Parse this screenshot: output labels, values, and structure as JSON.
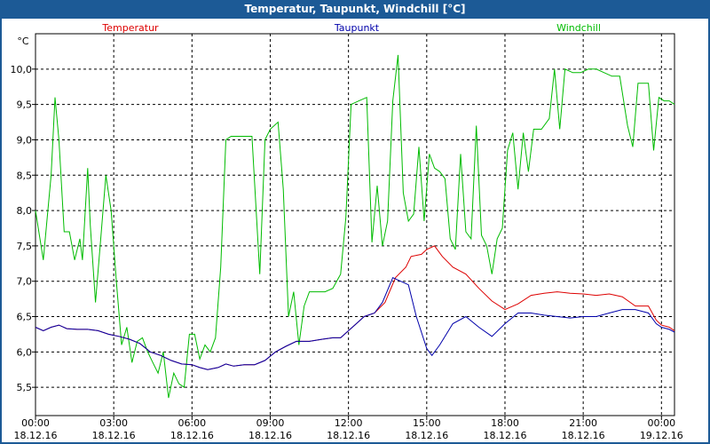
{
  "window": {
    "title": "Temperatur, Taupunkt, Windchill [°C]"
  },
  "chart_data": {
    "type": "line",
    "y_unit": "°C",
    "ylim": [
      5.1,
      10.5
    ],
    "yticks": [
      "5,5",
      "6,0",
      "6,5",
      "7,0",
      "7,5",
      "8,0",
      "8,5",
      "9,0",
      "9,5",
      "10,0"
    ],
    "ytick_values": [
      5.5,
      6.0,
      6.5,
      7.0,
      7.5,
      8.0,
      8.5,
      9.0,
      9.5,
      10.0
    ],
    "xlim": [
      0,
      24.5
    ],
    "xticks": [
      {
        "time": "00:00",
        "date": "18.12.16",
        "hour": 0
      },
      {
        "time": "03:00",
        "date": "18.12.16",
        "hour": 3
      },
      {
        "time": "06:00",
        "date": "18.12.16",
        "hour": 6
      },
      {
        "time": "09:00",
        "date": "18.12.16",
        "hour": 9
      },
      {
        "time": "12:00",
        "date": "18.12.16",
        "hour": 12
      },
      {
        "time": "15:00",
        "date": "18.12.16",
        "hour": 15
      },
      {
        "time": "18:00",
        "date": "18.12.16",
        "hour": 18
      },
      {
        "time": "21:00",
        "date": "18.12.16",
        "hour": 21
      },
      {
        "time": "00:00",
        "date": "19.12.16",
        "hour": 24
      }
    ],
    "grid": true,
    "series": [
      {
        "name": "Temperatur",
        "color": "#dd0000",
        "points": [
          [
            0,
            6.35
          ],
          [
            0.3,
            6.3
          ],
          [
            0.6,
            6.35
          ],
          [
            0.9,
            6.38
          ],
          [
            1.2,
            6.33
          ],
          [
            1.6,
            6.32
          ],
          [
            2.0,
            6.32
          ],
          [
            2.4,
            6.3
          ],
          [
            2.8,
            6.25
          ],
          [
            3.2,
            6.22
          ],
          [
            3.6,
            6.18
          ],
          [
            4.0,
            6.12
          ],
          [
            4.4,
            6.0
          ],
          [
            4.8,
            5.95
          ],
          [
            5.2,
            5.88
          ],
          [
            5.6,
            5.83
          ],
          [
            6.0,
            5.82
          ],
          [
            6.3,
            5.78
          ],
          [
            6.6,
            5.75
          ],
          [
            7.0,
            5.78
          ],
          [
            7.3,
            5.83
          ],
          [
            7.6,
            5.8
          ],
          [
            8.0,
            5.82
          ],
          [
            8.4,
            5.82
          ],
          [
            8.8,
            5.88
          ],
          [
            9.2,
            6.0
          ],
          [
            9.6,
            6.08
          ],
          [
            10.0,
            6.15
          ],
          [
            10.5,
            6.15
          ],
          [
            11.0,
            6.18
          ],
          [
            11.4,
            6.2
          ],
          [
            11.7,
            6.2
          ],
          [
            12.0,
            6.3
          ],
          [
            12.3,
            6.4
          ],
          [
            12.6,
            6.5
          ],
          [
            13.0,
            6.55
          ],
          [
            13.4,
            6.7
          ],
          [
            13.8,
            7.05
          ],
          [
            14.2,
            7.2
          ],
          [
            14.4,
            7.35
          ],
          [
            14.8,
            7.38
          ],
          [
            15.0,
            7.45
          ],
          [
            15.3,
            7.5
          ],
          [
            15.6,
            7.35
          ],
          [
            16.0,
            7.2
          ],
          [
            16.5,
            7.1
          ],
          [
            17.0,
            6.9
          ],
          [
            17.5,
            6.72
          ],
          [
            18.0,
            6.6
          ],
          [
            18.5,
            6.68
          ],
          [
            19.0,
            6.8
          ],
          [
            19.5,
            6.83
          ],
          [
            20.0,
            6.85
          ],
          [
            20.5,
            6.83
          ],
          [
            21.0,
            6.82
          ],
          [
            21.5,
            6.8
          ],
          [
            22.0,
            6.82
          ],
          [
            22.5,
            6.78
          ],
          [
            23.0,
            6.65
          ],
          [
            23.5,
            6.65
          ],
          [
            23.8,
            6.45
          ],
          [
            24.0,
            6.38
          ],
          [
            24.3,
            6.35
          ],
          [
            24.5,
            6.3
          ]
        ]
      },
      {
        "name": "Taupunkt",
        "color": "#0000aa",
        "points": [
          [
            0,
            6.35
          ],
          [
            0.3,
            6.3
          ],
          [
            0.6,
            6.35
          ],
          [
            0.9,
            6.38
          ],
          [
            1.2,
            6.33
          ],
          [
            1.6,
            6.32
          ],
          [
            2.0,
            6.32
          ],
          [
            2.4,
            6.3
          ],
          [
            2.8,
            6.25
          ],
          [
            3.2,
            6.22
          ],
          [
            3.6,
            6.18
          ],
          [
            4.0,
            6.12
          ],
          [
            4.4,
            6.0
          ],
          [
            4.8,
            5.95
          ],
          [
            5.2,
            5.88
          ],
          [
            5.6,
            5.83
          ],
          [
            6.0,
            5.82
          ],
          [
            6.3,
            5.78
          ],
          [
            6.6,
            5.75
          ],
          [
            7.0,
            5.78
          ],
          [
            7.3,
            5.83
          ],
          [
            7.6,
            5.8
          ],
          [
            8.0,
            5.82
          ],
          [
            8.4,
            5.82
          ],
          [
            8.8,
            5.88
          ],
          [
            9.2,
            6.0
          ],
          [
            9.6,
            6.08
          ],
          [
            10.0,
            6.15
          ],
          [
            10.5,
            6.15
          ],
          [
            11.0,
            6.18
          ],
          [
            11.4,
            6.2
          ],
          [
            11.7,
            6.2
          ],
          [
            12.0,
            6.3
          ],
          [
            12.3,
            6.4
          ],
          [
            12.6,
            6.5
          ],
          [
            13.0,
            6.55
          ],
          [
            13.3,
            6.7
          ],
          [
            13.7,
            7.05
          ],
          [
            14.0,
            7.0
          ],
          [
            14.3,
            6.95
          ],
          [
            14.6,
            6.5
          ],
          [
            15.0,
            6.05
          ],
          [
            15.2,
            5.95
          ],
          [
            15.5,
            6.1
          ],
          [
            16.0,
            6.4
          ],
          [
            16.5,
            6.5
          ],
          [
            17.0,
            6.35
          ],
          [
            17.5,
            6.22
          ],
          [
            18.0,
            6.4
          ],
          [
            18.5,
            6.55
          ],
          [
            19.0,
            6.55
          ],
          [
            19.5,
            6.52
          ],
          [
            20.0,
            6.5
          ],
          [
            20.5,
            6.48
          ],
          [
            21.0,
            6.5
          ],
          [
            21.5,
            6.5
          ],
          [
            22.0,
            6.55
          ],
          [
            22.5,
            6.6
          ],
          [
            23.0,
            6.6
          ],
          [
            23.5,
            6.55
          ],
          [
            23.8,
            6.4
          ],
          [
            24.0,
            6.35
          ],
          [
            24.3,
            6.32
          ],
          [
            24.5,
            6.28
          ]
        ]
      },
      {
        "name": "Windchill",
        "color": "#00bb00",
        "points": [
          [
            0,
            8.0
          ],
          [
            0.3,
            7.3
          ],
          [
            0.6,
            8.5
          ],
          [
            0.75,
            9.6
          ],
          [
            0.9,
            9.0
          ],
          [
            1.1,
            7.7
          ],
          [
            1.3,
            7.7
          ],
          [
            1.5,
            7.3
          ],
          [
            1.7,
            7.6
          ],
          [
            1.8,
            7.3
          ],
          [
            2.0,
            8.6
          ],
          [
            2.1,
            7.8
          ],
          [
            2.3,
            6.7
          ],
          [
            2.5,
            7.6
          ],
          [
            2.7,
            8.5
          ],
          [
            2.9,
            8.0
          ],
          [
            3.1,
            7.0
          ],
          [
            3.3,
            6.1
          ],
          [
            3.5,
            6.35
          ],
          [
            3.7,
            5.85
          ],
          [
            3.9,
            6.15
          ],
          [
            4.1,
            6.2
          ],
          [
            4.3,
            6.0
          ],
          [
            4.5,
            5.85
          ],
          [
            4.7,
            5.7
          ],
          [
            4.9,
            6.0
          ],
          [
            5.1,
            5.35
          ],
          [
            5.3,
            5.7
          ],
          [
            5.5,
            5.55
          ],
          [
            5.7,
            5.5
          ],
          [
            5.9,
            6.25
          ],
          [
            6.1,
            6.25
          ],
          [
            6.3,
            5.9
          ],
          [
            6.5,
            6.1
          ],
          [
            6.7,
            6.0
          ],
          [
            6.9,
            6.2
          ],
          [
            7.1,
            7.2
          ],
          [
            7.3,
            9.0
          ],
          [
            7.5,
            9.05
          ],
          [
            7.7,
            9.05
          ],
          [
            8.0,
            9.05
          ],
          [
            8.3,
            9.05
          ],
          [
            8.6,
            7.1
          ],
          [
            8.8,
            9.0
          ],
          [
            9.0,
            9.15
          ],
          [
            9.3,
            9.25
          ],
          [
            9.5,
            8.3
          ],
          [
            9.7,
            6.5
          ],
          [
            9.9,
            6.85
          ],
          [
            10.1,
            6.1
          ],
          [
            10.3,
            6.65
          ],
          [
            10.5,
            6.85
          ],
          [
            10.8,
            6.85
          ],
          [
            11.1,
            6.85
          ],
          [
            11.4,
            6.9
          ],
          [
            11.7,
            7.1
          ],
          [
            11.9,
            7.9
          ],
          [
            12.1,
            9.5
          ],
          [
            12.4,
            9.55
          ],
          [
            12.7,
            9.6
          ],
          [
            12.9,
            7.55
          ],
          [
            13.1,
            8.35
          ],
          [
            13.3,
            7.5
          ],
          [
            13.5,
            7.85
          ],
          [
            13.7,
            9.55
          ],
          [
            13.9,
            10.2
          ],
          [
            14.1,
            8.25
          ],
          [
            14.3,
            7.85
          ],
          [
            14.5,
            7.95
          ],
          [
            14.7,
            8.9
          ],
          [
            14.9,
            7.85
          ],
          [
            15.1,
            8.8
          ],
          [
            15.3,
            8.6
          ],
          [
            15.5,
            8.55
          ],
          [
            15.7,
            8.45
          ],
          [
            15.9,
            7.6
          ],
          [
            16.1,
            7.45
          ],
          [
            16.3,
            8.8
          ],
          [
            16.5,
            7.7
          ],
          [
            16.7,
            7.6
          ],
          [
            16.9,
            9.2
          ],
          [
            17.1,
            7.65
          ],
          [
            17.3,
            7.5
          ],
          [
            17.5,
            7.1
          ],
          [
            17.7,
            7.6
          ],
          [
            17.9,
            7.75
          ],
          [
            18.1,
            8.85
          ],
          [
            18.3,
            9.1
          ],
          [
            18.5,
            8.3
          ],
          [
            18.7,
            9.1
          ],
          [
            18.9,
            8.55
          ],
          [
            19.1,
            9.15
          ],
          [
            19.4,
            9.15
          ],
          [
            19.7,
            9.3
          ],
          [
            19.9,
            10.0
          ],
          [
            20.1,
            9.15
          ],
          [
            20.3,
            10.0
          ],
          [
            20.6,
            9.95
          ],
          [
            20.9,
            9.95
          ],
          [
            21.2,
            10.0
          ],
          [
            21.5,
            10.0
          ],
          [
            21.8,
            9.95
          ],
          [
            22.1,
            9.9
          ],
          [
            22.4,
            9.9
          ],
          [
            22.7,
            9.2
          ],
          [
            22.9,
            8.9
          ],
          [
            23.1,
            9.8
          ],
          [
            23.3,
            9.8
          ],
          [
            23.5,
            9.8
          ],
          [
            23.7,
            8.85
          ],
          [
            23.9,
            9.6
          ],
          [
            24.1,
            9.55
          ],
          [
            24.3,
            9.55
          ],
          [
            24.5,
            9.5
          ]
        ]
      }
    ]
  }
}
